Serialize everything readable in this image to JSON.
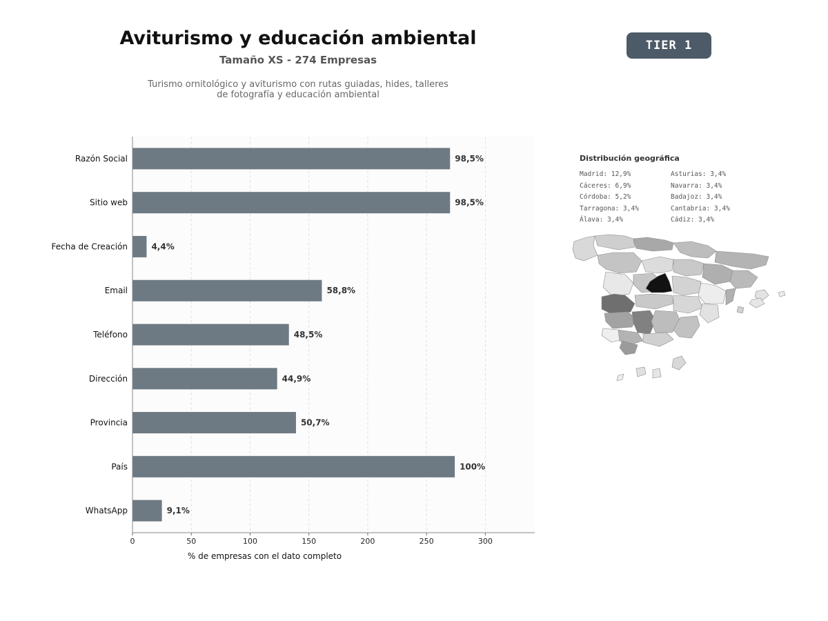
{
  "header": {
    "title": "Aviturismo y educación ambiental",
    "subtitle": "Tamaño XS - 274 Empresas",
    "description_line1": "Turismo ornitológico y aviturismo con rutas guiadas, hides, talleres",
    "description_line2": "de fotografía y educación ambiental",
    "tier_badge": "TIER 1"
  },
  "chart_data": {
    "type": "bar",
    "orientation": "horizontal",
    "categories": [
      "Razón Social",
      "Sitio web",
      "Fecha de Creación",
      "Email",
      "Teléfono",
      "Dirección",
      "Provincia",
      "País",
      "WhatsApp"
    ],
    "values": [
      270,
      270,
      12,
      161,
      133,
      123,
      139,
      274,
      25
    ],
    "data_labels": [
      "98,5%",
      "98,5%",
      "4,4%",
      "58,8%",
      "48,5%",
      "44,9%",
      "50,7%",
      "100%",
      "9,1%"
    ],
    "xlabel": "% de empresas con el dato completo",
    "xticks": [
      "0",
      "50",
      "100",
      "150",
      "200",
      "250",
      "300"
    ],
    "xlim": [
      0,
      342
    ],
    "grid": "vertical dashed",
    "bar_color": "#6e7a83"
  },
  "geo": {
    "title": "Distribución geográfica",
    "left_column": [
      "Madrid: 12,9%",
      "Cáceres: 6,9%",
      "Córdoba: 5,2%",
      "Tarragona: 3,4%",
      "Álava: 3,4%"
    ],
    "right_column": [
      "Asturias: 3,4%",
      "Navarra: 3,4%",
      "Badajoz: 3,4%",
      "Cantabria: 3,4%",
      "Cádiz: 3,4%"
    ]
  }
}
